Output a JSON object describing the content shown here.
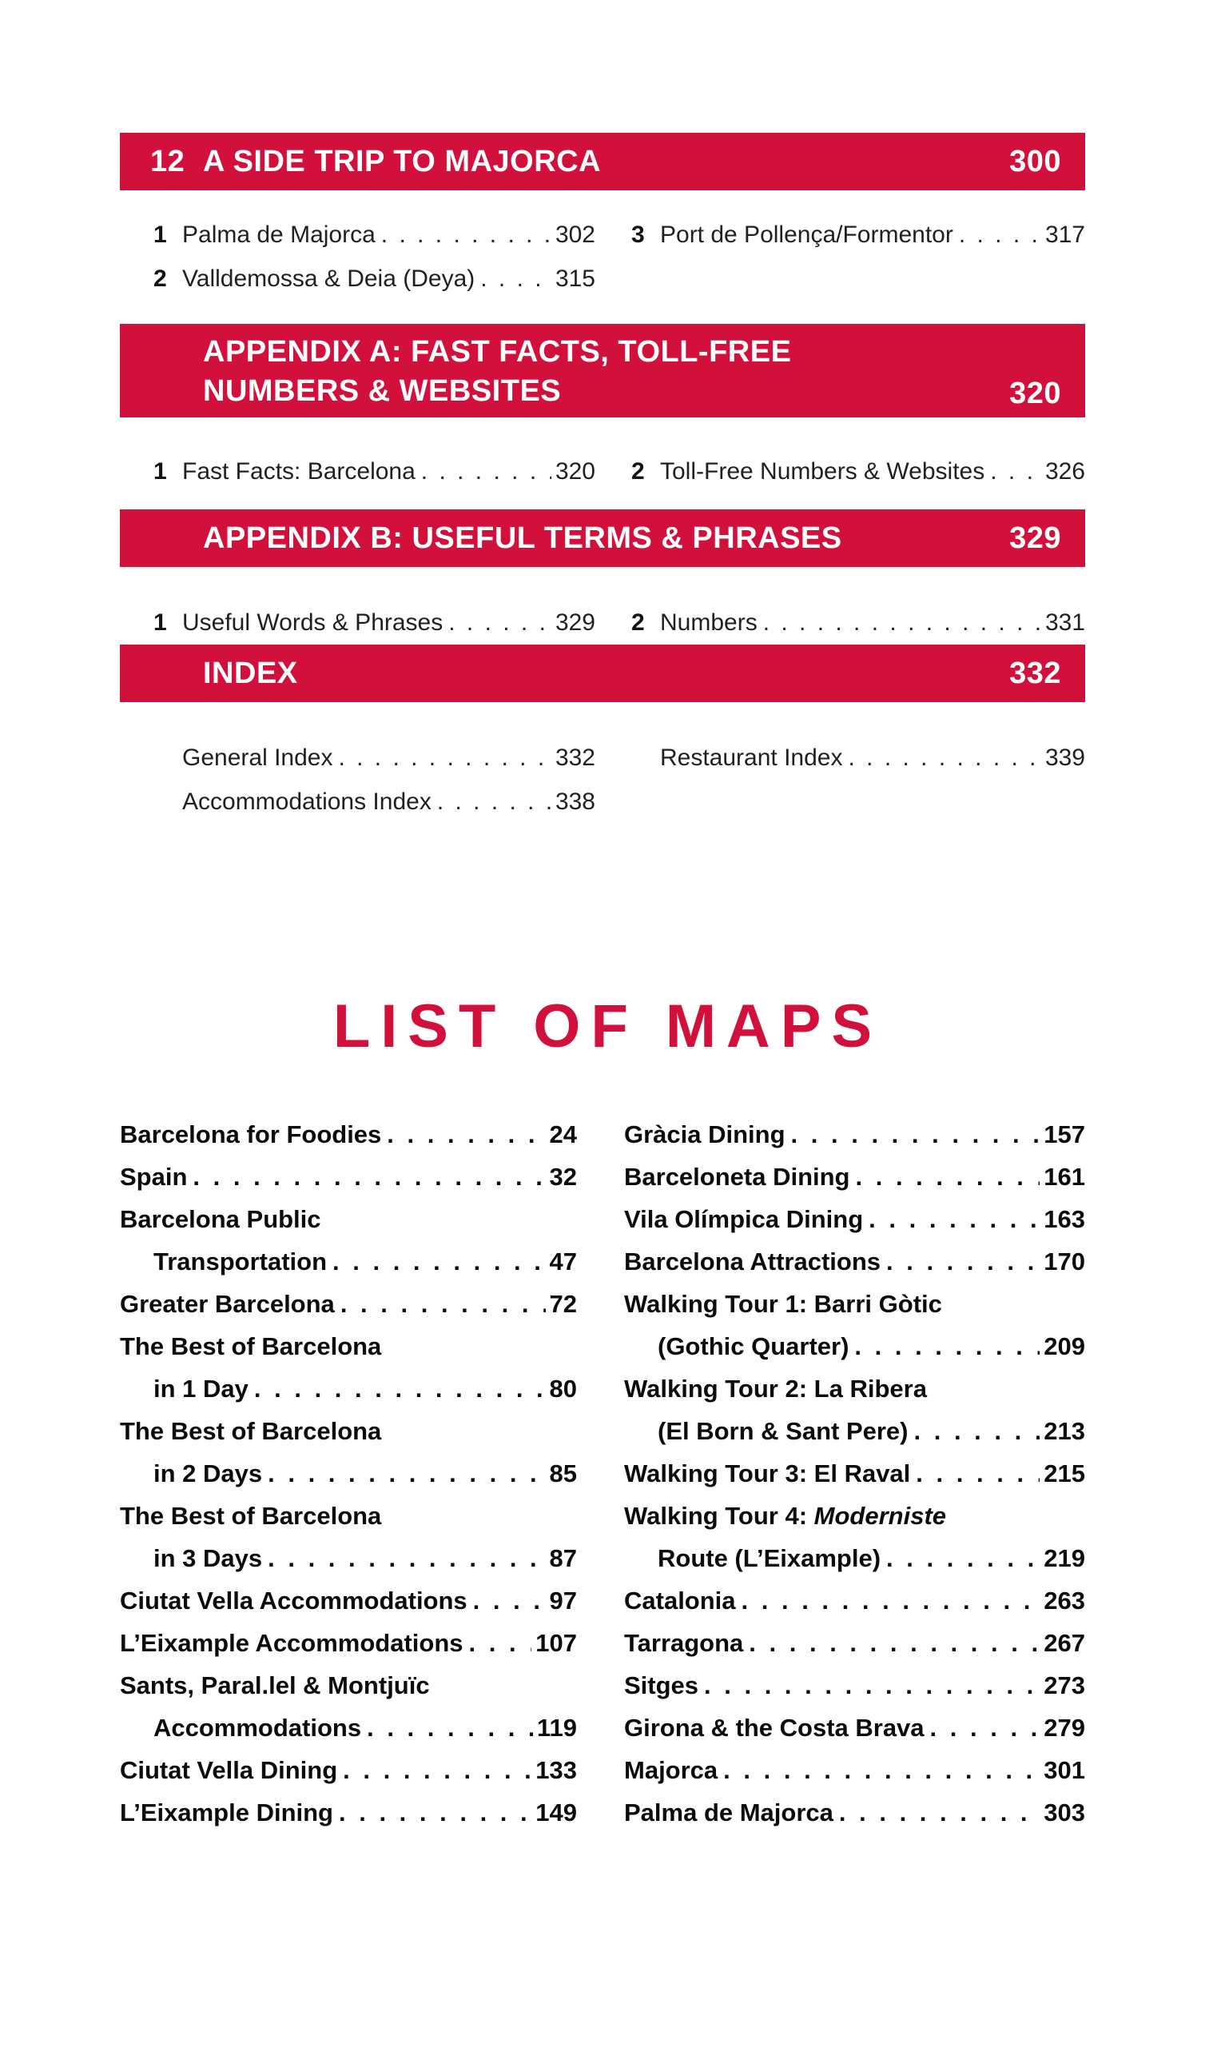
{
  "dots": ". . . . . . . . . . . . . . . . . . . . . . . . . . . . . . . . . . . . . . . . . . . . . . . .",
  "colors": {
    "accent_red": "#d1113c",
    "body_text": "#231f20"
  },
  "toc": {
    "sections": [
      {
        "num": "12",
        "title": "A SIDE TRIP TO MAJORCA",
        "page": "300",
        "left": [
          {
            "n": "1",
            "label": "Palma de Majorca",
            "page": "302"
          },
          {
            "n": "2",
            "label": "Valldemossa & Deia (Deya)",
            "page": "315"
          }
        ],
        "right": [
          {
            "n": "3",
            "label": "Port de Pollença/Formentor",
            "page": "317"
          }
        ]
      },
      {
        "title_line1": "APPENDIX A: FAST FACTS, TOLL-FREE",
        "title_line2": "NUMBERS & WEBSITES",
        "page": "320",
        "left": [
          {
            "n": "1",
            "label": "Fast Facts: Barcelona",
            "page": "320"
          }
        ],
        "right": [
          {
            "n": "2",
            "label": "Toll-Free Numbers & Websites",
            "page": "326"
          }
        ]
      },
      {
        "title": "APPENDIX B: USEFUL TERMS & PHRASES",
        "page": "329",
        "left": [
          {
            "n": "1",
            "label": "Useful Words & Phrases",
            "page": "329"
          }
        ],
        "right": [
          {
            "n": "2",
            "label": "Numbers",
            "page": "331"
          }
        ]
      },
      {
        "title": "INDEX",
        "page": "332",
        "left": [
          {
            "label": "General Index",
            "page": "332"
          },
          {
            "label": "Accommodations Index",
            "page": "338"
          }
        ],
        "right": [
          {
            "label": "Restaurant Index",
            "page": "339"
          }
        ]
      }
    ]
  },
  "list_of_maps": {
    "title": "LIST OF MAPS",
    "left": [
      {
        "line1": "Barcelona for Foodies",
        "page": "24"
      },
      {
        "line1": "Spain",
        "page": "32"
      },
      {
        "line1": "Barcelona Public",
        "line2": "Transportation",
        "page": "47"
      },
      {
        "line1": "Greater Barcelona",
        "page": "72"
      },
      {
        "line1": "The Best of Barcelona",
        "line2": "in 1 Day",
        "page": "80"
      },
      {
        "line1": "The Best of Barcelona",
        "line2": "in 2 Days",
        "page": "85"
      },
      {
        "line1": "The Best of Barcelona",
        "line2": "in 3 Days",
        "page": "87"
      },
      {
        "line1": "Ciutat Vella Accommodations",
        "page": "97"
      },
      {
        "line1": "L’Eixample Accommodations",
        "page": "107"
      },
      {
        "line1": "Sants, Paral.lel & Montjuïc",
        "line2": "Accommodations",
        "page": "119"
      },
      {
        "line1": "Ciutat Vella Dining",
        "page": "133"
      },
      {
        "line1": "L’Eixample Dining",
        "page": "149"
      }
    ],
    "right": [
      {
        "line1": "Gràcia Dining",
        "page": "157"
      },
      {
        "line1": "Barceloneta Dining",
        "page": "161"
      },
      {
        "line1": "Vila Olímpica Dining",
        "page": "163"
      },
      {
        "line1": "Barcelona Attractions",
        "page": "170"
      },
      {
        "line1": "Walking Tour 1: Barri Gòtic",
        "line2": "(Gothic Quarter)",
        "page": "209"
      },
      {
        "line1": "Walking Tour 2: La Ribera",
        "line2": "(El Born & Sant Pere)",
        "page": "213"
      },
      {
        "line1": "Walking Tour 3: El Raval",
        "page": "215"
      },
      {
        "line1_prefix": "Walking Tour 4: ",
        "line1_italic": "Moderniste",
        "line2": "Route (L’Eixample)",
        "page": "219"
      },
      {
        "line1": "Catalonia",
        "page": "263"
      },
      {
        "line1": "Tarragona",
        "page": "267"
      },
      {
        "line1": "Sitges",
        "page": "273"
      },
      {
        "line1": "Girona & the Costa Brava",
        "page": "279"
      },
      {
        "line1": "Majorca",
        "page": "301"
      },
      {
        "line1": "Palma de Majorca",
        "page": "303"
      }
    ]
  }
}
